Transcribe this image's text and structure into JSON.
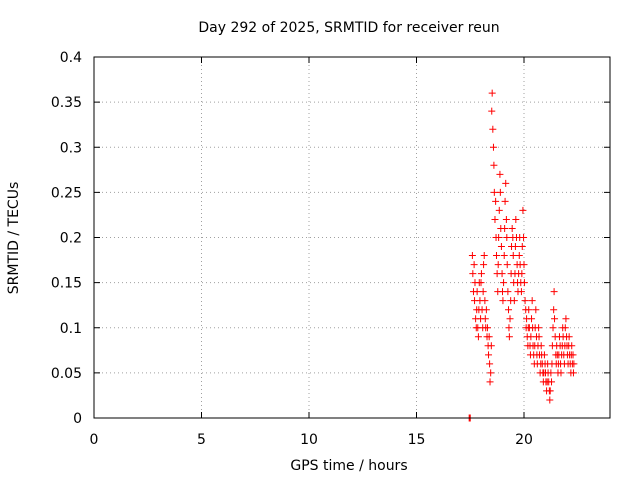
{
  "chart_data": {
    "type": "scatter",
    "title": "Day 292 of 2025, SRMTID for receiver reun",
    "xlabel": "GPS time / hours",
    "ylabel": "SRMTID / TECUs",
    "xlim": [
      0,
      24
    ],
    "ylim": [
      0,
      0.4
    ],
    "xticks": [
      0,
      5,
      10,
      15,
      20
    ],
    "xtick_labels": [
      "0",
      "5",
      "10",
      "15",
      "20"
    ],
    "yticks": [
      0,
      0.05,
      0.1,
      0.15,
      0.2,
      0.25,
      0.3,
      0.35,
      0.4
    ],
    "ytick_labels": [
      "0",
      "0.05",
      "0.1",
      "0.15",
      "0.2",
      "0.25",
      "0.3",
      "0.35",
      "0.4"
    ],
    "grid": true,
    "marker": "plus",
    "color": "#ff0000",
    "series": [
      {
        "name": "SRMTID",
        "points": [
          [
            17.45,
            0.0
          ],
          [
            17.48,
            0.0
          ],
          [
            17.5,
            0.0
          ],
          [
            17.6,
            0.18
          ],
          [
            17.62,
            0.16
          ],
          [
            17.65,
            0.14
          ],
          [
            17.68,
            0.17
          ],
          [
            17.7,
            0.13
          ],
          [
            17.72,
            0.15
          ],
          [
            17.75,
            0.11
          ],
          [
            17.78,
            0.1
          ],
          [
            17.8,
            0.12
          ],
          [
            17.82,
            0.14
          ],
          [
            17.85,
            0.1
          ],
          [
            17.88,
            0.09
          ],
          [
            17.9,
            0.12
          ],
          [
            17.92,
            0.15
          ],
          [
            17.95,
            0.13
          ],
          [
            17.98,
            0.11
          ],
          [
            18.0,
            0.15
          ],
          [
            18.02,
            0.16
          ],
          [
            18.05,
            0.12
          ],
          [
            18.08,
            0.1
          ],
          [
            18.1,
            0.14
          ],
          [
            18.12,
            0.17
          ],
          [
            18.15,
            0.18
          ],
          [
            18.18,
            0.13
          ],
          [
            18.2,
            0.11
          ],
          [
            18.22,
            0.1
          ],
          [
            18.25,
            0.12
          ],
          [
            18.28,
            0.09
          ],
          [
            18.3,
            0.1
          ],
          [
            18.33,
            0.08
          ],
          [
            18.35,
            0.07
          ],
          [
            18.38,
            0.09
          ],
          [
            18.4,
            0.06
          ],
          [
            18.42,
            0.04
          ],
          [
            18.45,
            0.05
          ],
          [
            18.48,
            0.08
          ],
          [
            18.5,
            0.34
          ],
          [
            18.52,
            0.36
          ],
          [
            18.55,
            0.32
          ],
          [
            18.58,
            0.3
          ],
          [
            18.6,
            0.28
          ],
          [
            18.62,
            0.25
          ],
          [
            18.65,
            0.22
          ],
          [
            18.68,
            0.24
          ],
          [
            18.7,
            0.2
          ],
          [
            18.72,
            0.18
          ],
          [
            18.75,
            0.16
          ],
          [
            18.78,
            0.14
          ],
          [
            18.8,
            0.17
          ],
          [
            18.82,
            0.2
          ],
          [
            18.85,
            0.23
          ],
          [
            18.88,
            0.27
          ],
          [
            18.9,
            0.25
          ],
          [
            18.92,
            0.21
          ],
          [
            18.95,
            0.19
          ],
          [
            18.98,
            0.16
          ],
          [
            19.0,
            0.14
          ],
          [
            19.02,
            0.13
          ],
          [
            19.05,
            0.15
          ],
          [
            19.08,
            0.18
          ],
          [
            19.1,
            0.21
          ],
          [
            19.12,
            0.24
          ],
          [
            19.15,
            0.26
          ],
          [
            19.18,
            0.22
          ],
          [
            19.2,
            0.2
          ],
          [
            19.22,
            0.17
          ],
          [
            19.25,
            0.14
          ],
          [
            19.28,
            0.12
          ],
          [
            19.3,
            0.1
          ],
          [
            19.32,
            0.09
          ],
          [
            19.35,
            0.11
          ],
          [
            19.38,
            0.13
          ],
          [
            19.4,
            0.16
          ],
          [
            19.42,
            0.19
          ],
          [
            19.45,
            0.21
          ],
          [
            19.48,
            0.2
          ],
          [
            19.5,
            0.18
          ],
          [
            19.52,
            0.15
          ],
          [
            19.55,
            0.13
          ],
          [
            19.58,
            0.16
          ],
          [
            19.6,
            0.19
          ],
          [
            19.62,
            0.22
          ],
          [
            19.65,
            0.2
          ],
          [
            19.68,
            0.17
          ],
          [
            19.7,
            0.15
          ],
          [
            19.72,
            0.14
          ],
          [
            19.75,
            0.16
          ],
          [
            19.78,
            0.18
          ],
          [
            19.8,
            0.2
          ],
          [
            19.82,
            0.17
          ],
          [
            19.85,
            0.15
          ],
          [
            19.88,
            0.14
          ],
          [
            19.9,
            0.16
          ],
          [
            19.92,
            0.19
          ],
          [
            19.95,
            0.23
          ],
          [
            19.98,
            0.2
          ],
          [
            20.0,
            0.17
          ],
          [
            20.02,
            0.15
          ],
          [
            20.05,
            0.13
          ],
          [
            20.08,
            0.12
          ],
          [
            20.1,
            0.1
          ],
          [
            20.12,
            0.11
          ],
          [
            20.15,
            0.09
          ],
          [
            20.18,
            0.08
          ],
          [
            20.2,
            0.1
          ],
          [
            20.22,
            0.12
          ],
          [
            20.25,
            0.1
          ],
          [
            20.28,
            0.08
          ],
          [
            20.3,
            0.07
          ],
          [
            20.32,
            0.09
          ],
          [
            20.35,
            0.11
          ],
          [
            20.38,
            0.13
          ],
          [
            20.4,
            0.1
          ],
          [
            20.42,
            0.08
          ],
          [
            20.45,
            0.07
          ],
          [
            20.48,
            0.06
          ],
          [
            20.5,
            0.08
          ],
          [
            20.52,
            0.1
          ],
          [
            20.55,
            0.12
          ],
          [
            20.58,
            0.09
          ],
          [
            20.6,
            0.07
          ],
          [
            20.62,
            0.06
          ],
          [
            20.65,
            0.08
          ],
          [
            20.68,
            0.1
          ],
          [
            20.7,
            0.09
          ],
          [
            20.72,
            0.07
          ],
          [
            20.75,
            0.05
          ],
          [
            20.78,
            0.06
          ],
          [
            20.8,
            0.08
          ],
          [
            20.82,
            0.07
          ],
          [
            20.85,
            0.06
          ],
          [
            20.88,
            0.05
          ],
          [
            20.9,
            0.04
          ],
          [
            20.92,
            0.05
          ],
          [
            20.95,
            0.07
          ],
          [
            20.98,
            0.06
          ],
          [
            21.0,
            0.05
          ],
          [
            21.02,
            0.04
          ],
          [
            21.05,
            0.03
          ],
          [
            21.08,
            0.04
          ],
          [
            21.1,
            0.06
          ],
          [
            21.12,
            0.05
          ],
          [
            21.15,
            0.04
          ],
          [
            21.18,
            0.03
          ],
          [
            21.2,
            0.02
          ],
          [
            21.22,
            0.03
          ],
          [
            21.25,
            0.05
          ],
          [
            21.28,
            0.04
          ],
          [
            21.3,
            0.06
          ],
          [
            21.32,
            0.08
          ],
          [
            21.35,
            0.1
          ],
          [
            21.38,
            0.12
          ],
          [
            21.4,
            0.14
          ],
          [
            21.42,
            0.11
          ],
          [
            21.45,
            0.09
          ],
          [
            21.48,
            0.07
          ],
          [
            21.5,
            0.06
          ],
          [
            21.52,
            0.08
          ],
          [
            21.55,
            0.07
          ],
          [
            21.58,
            0.05
          ],
          [
            21.6,
            0.06
          ],
          [
            21.62,
            0.07
          ],
          [
            21.65,
            0.09
          ],
          [
            21.68,
            0.08
          ],
          [
            21.7,
            0.06
          ],
          [
            21.72,
            0.05
          ],
          [
            21.75,
            0.07
          ],
          [
            21.78,
            0.08
          ],
          [
            21.8,
            0.1
          ],
          [
            21.82,
            0.09
          ],
          [
            21.85,
            0.07
          ],
          [
            21.88,
            0.06
          ],
          [
            21.9,
            0.08
          ],
          [
            21.92,
            0.1
          ],
          [
            21.95,
            0.11
          ],
          [
            21.98,
            0.09
          ],
          [
            22.0,
            0.08
          ],
          [
            22.02,
            0.07
          ],
          [
            22.05,
            0.06
          ],
          [
            22.08,
            0.08
          ],
          [
            22.1,
            0.09
          ],
          [
            22.12,
            0.07
          ],
          [
            22.15,
            0.06
          ],
          [
            22.18,
            0.05
          ],
          [
            22.2,
            0.07
          ],
          [
            22.22,
            0.08
          ],
          [
            22.25,
            0.06
          ],
          [
            22.28,
            0.07
          ],
          [
            22.3,
            0.05
          ],
          [
            22.32,
            0.06
          ]
        ]
      }
    ]
  }
}
